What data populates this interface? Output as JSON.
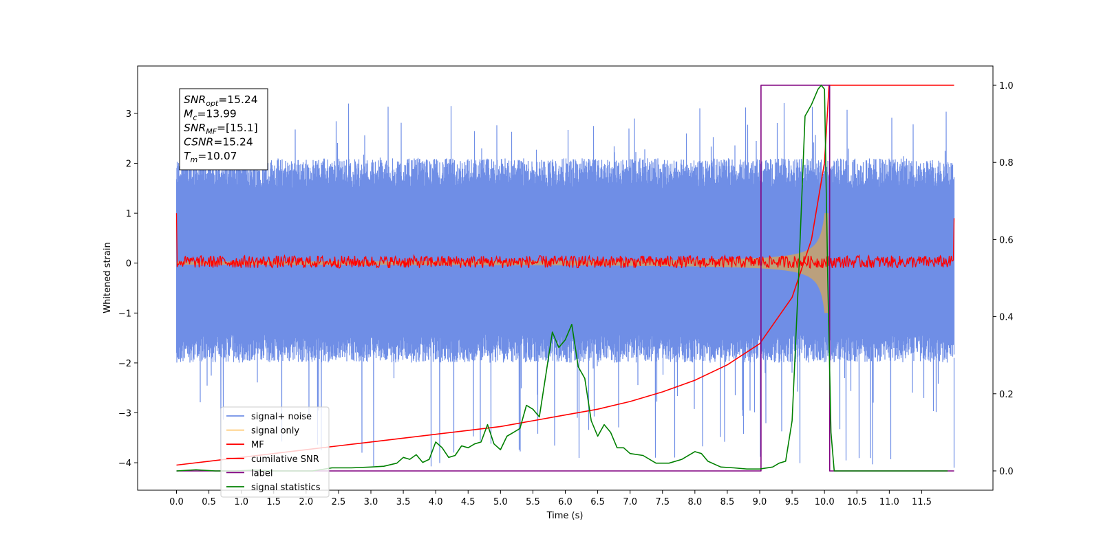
{
  "chart_data": {
    "type": "line",
    "xlabel": "Time (s)",
    "ylabel": "Whitened strain",
    "xlim": [
      -0.6,
      12.6
    ],
    "ylim": [
      -4.55,
      3.95
    ],
    "ylim_right": [
      -0.05,
      1.05
    ],
    "x_ticks": [
      "0.0",
      "0.5",
      "1.0",
      "1.5",
      "2.0",
      "2.5",
      "3.0",
      "3.5",
      "4.0",
      "4.5",
      "5.0",
      "5.5",
      "6.0",
      "6.5",
      "7.0",
      "7.5",
      "8.0",
      "8.5",
      "9.0",
      "9.5",
      "10.0",
      "10.5",
      "11.0",
      "11.5"
    ],
    "y_ticks": [
      "3",
      "2",
      "1",
      "0",
      "−1",
      "−2",
      "−3",
      "−4"
    ],
    "y_right_ticks": [
      "1.0",
      "0.8",
      "0.6",
      "0.4",
      "0.2",
      "0.0"
    ],
    "grid": false,
    "legend_position": "lower-left",
    "annotation": [
      {
        "name": "SNR",
        "sub": "opt",
        "value": "=15.24"
      },
      {
        "name": "M",
        "sub": "c",
        "value": "=13.99"
      },
      {
        "name": "SNR",
        "sub": "MF",
        "value": "=[15.1]"
      },
      {
        "name": "CSNR",
        "sub": "",
        "value": "=15.24"
      },
      {
        "name": "T",
        "sub": "m",
        "value": "=10.07"
      }
    ],
    "series": [
      {
        "name": "signal+ noise",
        "color": "#6f8ee6",
        "axis": "left",
        "style": "noise band",
        "x_range": [
          0.0,
          12.0
        ],
        "typical_range": [
          -1.9,
          2.0
        ],
        "extremes": [
          -4.1,
          3.3
        ]
      },
      {
        "name": "signal only",
        "color": "#ffc870",
        "axis": "left",
        "style": "chirp",
        "x_range": [
          0.0,
          10.07
        ],
        "amplitude": [
          0.02,
          1.0
        ]
      },
      {
        "name": "MF",
        "color": "#ff0000",
        "axis": "left",
        "style": "noise trace",
        "x_range": [
          0.0,
          12.0
        ],
        "typical_range": [
          -0.1,
          0.15
        ],
        "start_value": 1.0,
        "end_value": 0.9
      },
      {
        "name": "cumilative SNR",
        "color": "#ff0000",
        "axis": "right",
        "x": [
          0.0,
          0.5,
          1.0,
          1.5,
          2.0,
          2.5,
          3.0,
          3.5,
          4.0,
          4.5,
          5.0,
          5.5,
          6.0,
          6.5,
          7.0,
          7.5,
          8.0,
          8.5,
          9.0,
          9.5,
          9.8,
          10.0,
          10.07,
          12.0
        ],
        "y": [
          0.015,
          0.025,
          0.035,
          0.045,
          0.055,
          0.065,
          0.075,
          0.085,
          0.095,
          0.105,
          0.115,
          0.13,
          0.145,
          0.16,
          0.18,
          0.205,
          0.235,
          0.275,
          0.33,
          0.45,
          0.6,
          0.8,
          1.0,
          1.0
        ]
      },
      {
        "name": "label",
        "color": "#800080",
        "axis": "right",
        "x": [
          0.0,
          9.02,
          9.02,
          10.08,
          10.08,
          12.0
        ],
        "y": [
          0.0,
          0.0,
          1.0,
          1.0,
          0.0,
          0.0
        ]
      },
      {
        "name": "signal statistics",
        "color": "#008000",
        "axis": "right",
        "x": [
          0.0,
          0.3,
          0.6,
          0.9,
          1.2,
          1.5,
          1.8,
          2.1,
          2.4,
          2.7,
          3.0,
          3.2,
          3.4,
          3.5,
          3.6,
          3.7,
          3.8,
          3.9,
          4.0,
          4.1,
          4.2,
          4.3,
          4.4,
          4.5,
          4.6,
          4.7,
          4.8,
          4.9,
          5.0,
          5.1,
          5.2,
          5.3,
          5.4,
          5.5,
          5.6,
          5.7,
          5.8,
          5.9,
          6.0,
          6.1,
          6.2,
          6.3,
          6.4,
          6.5,
          6.6,
          6.7,
          6.8,
          6.9,
          7.0,
          7.2,
          7.4,
          7.6,
          7.8,
          8.0,
          8.1,
          8.2,
          8.4,
          8.6,
          8.8,
          9.0,
          9.2,
          9.3,
          9.4,
          9.5,
          9.6,
          9.7,
          9.8,
          9.9,
          9.95,
          10.0,
          10.05,
          10.1,
          10.15,
          11.0,
          11.9
        ],
        "y": [
          0.0,
          0.003,
          0.0,
          0.0,
          0.002,
          0.0,
          0.0,
          0.0,
          0.008,
          0.008,
          0.01,
          0.012,
          0.02,
          0.035,
          0.03,
          0.042,
          0.022,
          0.03,
          0.075,
          0.06,
          0.035,
          0.04,
          0.065,
          0.06,
          0.07,
          0.075,
          0.12,
          0.07,
          0.055,
          0.09,
          0.1,
          0.11,
          0.17,
          0.16,
          0.14,
          0.25,
          0.36,
          0.32,
          0.34,
          0.38,
          0.27,
          0.24,
          0.13,
          0.09,
          0.12,
          0.1,
          0.06,
          0.06,
          0.045,
          0.04,
          0.02,
          0.02,
          0.03,
          0.05,
          0.045,
          0.025,
          0.01,
          0.008,
          0.005,
          0.005,
          0.01,
          0.02,
          0.025,
          0.13,
          0.5,
          0.92,
          0.95,
          0.99,
          1.0,
          0.99,
          0.5,
          0.1,
          0.0,
          0.0,
          0.0
        ]
      }
    ]
  }
}
